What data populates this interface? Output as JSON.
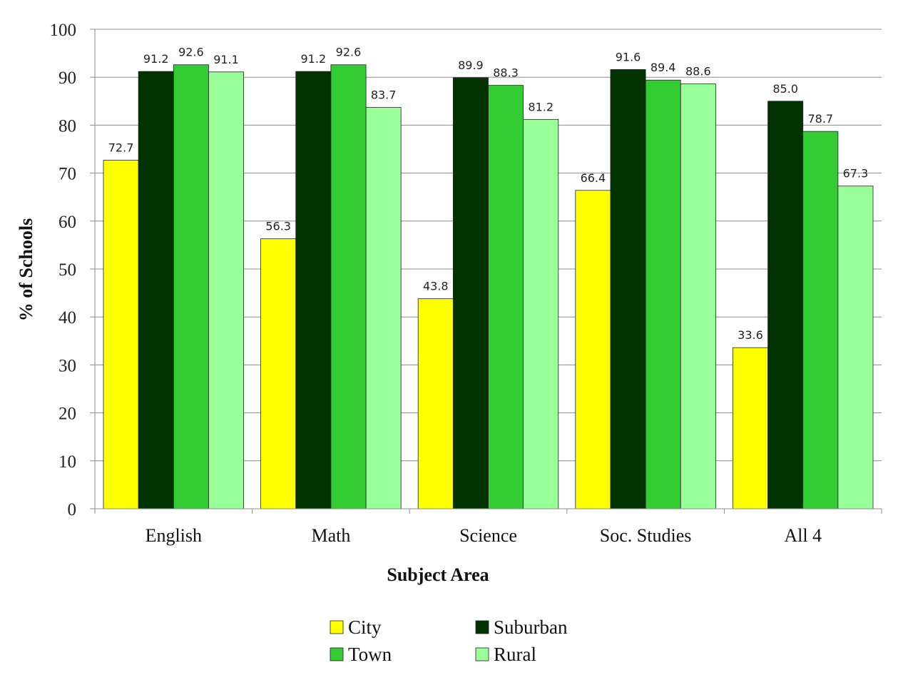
{
  "chart_data": {
    "type": "bar",
    "title": "",
    "xlabel": "Subject Area",
    "ylabel": "% of Schools",
    "ylim": [
      0,
      100
    ],
    "ytick_step": 10,
    "grid": true,
    "legend_position": "bottom",
    "categories": [
      "English",
      "Math",
      "Science",
      "Soc. Studies",
      "All 4"
    ],
    "series": [
      {
        "name": "City",
        "color": "#ffff00",
        "values": [
          72.7,
          56.3,
          43.8,
          66.4,
          33.6
        ]
      },
      {
        "name": "Suburban",
        "color": "#003300",
        "values": [
          91.2,
          91.2,
          89.9,
          91.6,
          85.0
        ]
      },
      {
        "name": "Town",
        "color": "#33cc33",
        "values": [
          92.6,
          92.6,
          88.3,
          89.4,
          78.7
        ]
      },
      {
        "name": "Rural",
        "color": "#99ff99",
        "values": [
          91.1,
          83.7,
          81.2,
          88.6,
          67.3
        ]
      }
    ]
  }
}
